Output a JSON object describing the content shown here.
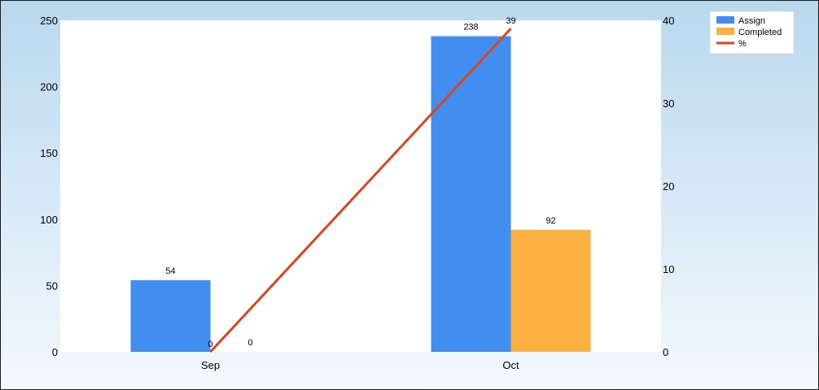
{
  "chart_data": {
    "type": "bar",
    "categories": [
      "Sep",
      "Oct"
    ],
    "series": [
      {
        "name": "Assign",
        "type": "bar",
        "axis": "left",
        "color": "#428ef0",
        "values": [
          54,
          238
        ]
      },
      {
        "name": "Completed",
        "type": "bar",
        "axis": "left",
        "color": "#fbb040",
        "values": [
          0,
          92
        ]
      },
      {
        "name": "%",
        "type": "line",
        "axis": "right",
        "color": "#d8451e",
        "values": [
          0,
          39
        ]
      }
    ],
    "y_left": {
      "ticks": [
        0,
        50,
        100,
        150,
        200,
        250
      ],
      "ylim": [
        0,
        250
      ]
    },
    "y_right": {
      "ticks": [
        0,
        10,
        20,
        30,
        40
      ],
      "ylim": [
        0,
        40
      ]
    },
    "grid": false,
    "legend_position": "top-right"
  }
}
